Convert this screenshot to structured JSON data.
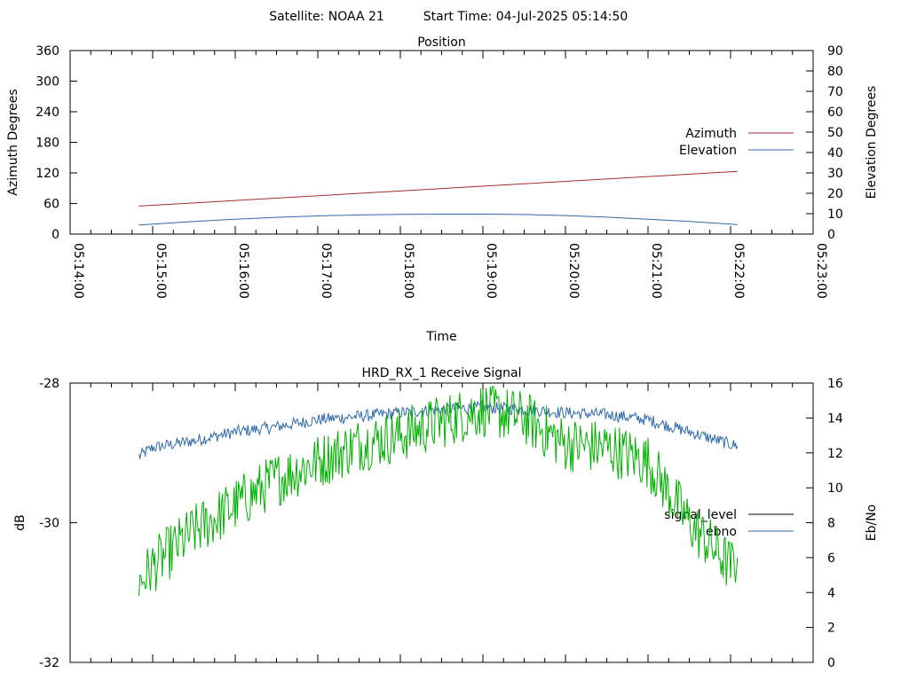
{
  "header": {
    "satellite": "Satellite: NOAA 21",
    "start_time": "Start Time: 04-Jul-2025 05:14:50"
  },
  "chart_data": [
    {
      "type": "line",
      "title": "Position",
      "xlabel": "Time",
      "ylabel": "Azimuth Degrees",
      "y2label": "Elevation Degrees",
      "x_ticks": [
        "05:14:00",
        "05:15:00",
        "05:16:00",
        "05:17:00",
        "05:18:00",
        "05:19:00",
        "05:20:00",
        "05:21:00",
        "05:22:00",
        "05:23:00"
      ],
      "x_range": [
        "05:14:00",
        "05:23:00"
      ],
      "x_minor_ticks_per_interval": 3,
      "y_ticks": [
        0,
        60,
        120,
        180,
        240,
        300,
        360
      ],
      "ylim": [
        0,
        360
      ],
      "y2_ticks": [
        0,
        10,
        20,
        30,
        40,
        50,
        60,
        70,
        80,
        90
      ],
      "y2lim": [
        0,
        90
      ],
      "grid": false,
      "legend_position": "right",
      "series": [
        {
          "name": "Azimuth",
          "axis": "left",
          "color": "#a52a2a",
          "x": [
            "05:14:50",
            "05:22:05"
          ],
          "values": [
            55,
            123
          ]
        },
        {
          "name": "Elevation",
          "axis": "right",
          "color": "#2f6aa8",
          "x": [
            "05:14:50",
            "05:15:30",
            "05:16:00",
            "05:16:30",
            "05:17:00",
            "05:17:30",
            "05:18:00",
            "05:18:30",
            "05:19:00",
            "05:19:30",
            "05:20:00",
            "05:20:30",
            "05:21:00",
            "05:21:30",
            "05:22:00",
            "05:22:05"
          ],
          "values": [
            4.5,
            6.2,
            7.3,
            8.2,
            8.9,
            9.4,
            9.7,
            9.8,
            9.8,
            9.6,
            9.1,
            8.3,
            7.3,
            6.2,
            4.9,
            4.6
          ]
        }
      ]
    },
    {
      "type": "line",
      "title": "HRD_RX_1 Receive Signal",
      "ylabel": "dB",
      "y2label": "Eb/No",
      "x_range": [
        "05:14:00",
        "05:23:00"
      ],
      "x_minor_ticks_per_interval": 3,
      "y_ticks": [
        -28,
        -30,
        -32
      ],
      "ylim": [
        -32,
        -28
      ],
      "y2_ticks": [
        0,
        2,
        4,
        6,
        8,
        10,
        12,
        14,
        16
      ],
      "y2lim": [
        0,
        16
      ],
      "grid": false,
      "legend_position": "right",
      "series": [
        {
          "name": "signal_level",
          "axis": "left",
          "color": "#000000",
          "x": [],
          "values": []
        },
        {
          "name": "ebno",
          "axis": "right",
          "color": "#2f6aa8",
          "x": [
            "05:14:50",
            "05:15:00",
            "05:15:30",
            "05:16:00",
            "05:16:30",
            "05:17:00",
            "05:17:30",
            "05:18:00",
            "05:18:30",
            "05:19:00",
            "05:19:30",
            "05:20:00",
            "05:20:30",
            "05:21:00",
            "05:21:30",
            "05:22:00",
            "05:22:05"
          ],
          "values": [
            11.8,
            12.3,
            12.7,
            13.2,
            13.5,
            13.9,
            14.1,
            14.3,
            14.5,
            14.6,
            14.5,
            14.3,
            14.2,
            13.9,
            13.2,
            12.5,
            12.4
          ]
        },
        {
          "name": "",
          "axis": "right",
          "color": "#00b000",
          "x": [
            "05:14:50",
            "05:15:00",
            "05:15:30",
            "05:16:00",
            "05:16:30",
            "05:17:00",
            "05:17:30",
            "05:18:00",
            "05:18:30",
            "05:19:00",
            "05:19:30",
            "05:20:00",
            "05:20:30",
            "05:21:00",
            "05:21:30",
            "05:22:00",
            "05:22:05"
          ],
          "values": [
            4.5,
            5.5,
            7.5,
            9.0,
            10.5,
            11.5,
            12.5,
            13.0,
            13.8,
            14.5,
            14.0,
            12.5,
            12.3,
            11.5,
            8.0,
            5.5,
            6.0
          ]
        }
      ]
    }
  ]
}
